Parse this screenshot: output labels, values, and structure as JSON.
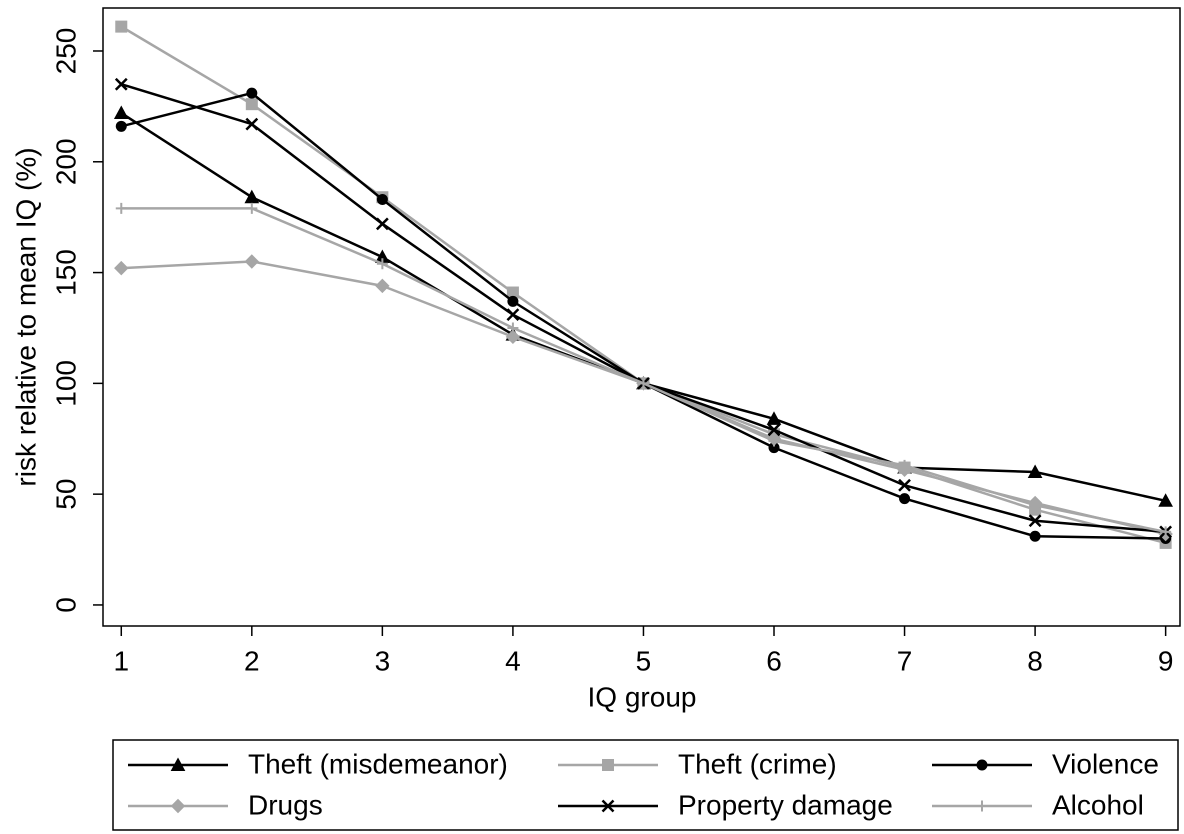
{
  "chart_data": {
    "type": "line",
    "xlabel": "IQ group",
    "ylabel": "risk relative to mean IQ (%)",
    "x": [
      1,
      2,
      3,
      4,
      5,
      6,
      7,
      8,
      9
    ],
    "xlim": [
      0.86,
      9.11
    ],
    "xticks": [
      1,
      2,
      3,
      4,
      5,
      6,
      7,
      8,
      9
    ],
    "ylim": [
      -9.5,
      269.4
    ],
    "yticks": [
      0,
      50,
      100,
      150,
      200,
      250
    ],
    "series": [
      {
        "name": "Theft (misdemeanor)",
        "color": "#000000",
        "marker": "triangle",
        "values": [
          222,
          184,
          157,
          122,
          100,
          84,
          62,
          60,
          47
        ]
      },
      {
        "name": "Theft (crime)",
        "color": "#a6a6a6",
        "marker": "square",
        "values": [
          261,
          226,
          184,
          141,
          100,
          77,
          62,
          43,
          28
        ]
      },
      {
        "name": "Violence",
        "color": "#000000",
        "marker": "circle",
        "values": [
          216,
          231,
          183,
          137,
          100,
          71,
          48,
          31,
          30
        ]
      },
      {
        "name": "Drugs",
        "color": "#a6a6a6",
        "marker": "diamond",
        "values": [
          152,
          155,
          144,
          121,
          100,
          75,
          61,
          46,
          32
        ]
      },
      {
        "name": "Property damage",
        "color": "#000000",
        "marker": "x",
        "values": [
          235,
          217,
          172,
          131,
          100,
          79,
          54,
          38,
          33
        ]
      },
      {
        "name": "Alcohol",
        "color": "#a6a6a6",
        "marker": "plus",
        "values": [
          179,
          179,
          154,
          125,
          100,
          74,
          63,
          45,
          33
        ]
      }
    ]
  }
}
